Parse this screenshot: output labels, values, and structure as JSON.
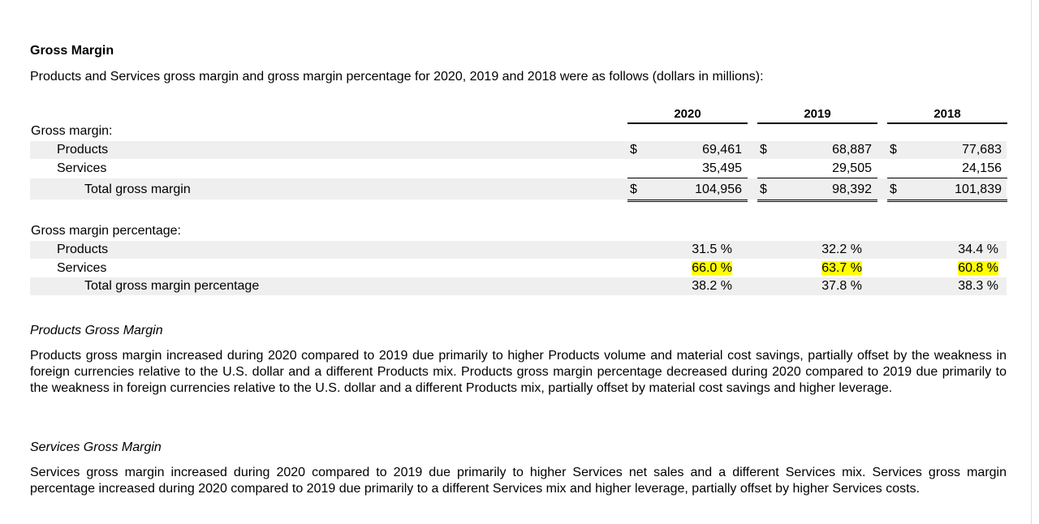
{
  "header": {
    "title": "Gross Margin",
    "intro": "Products and Services gross margin and gross margin percentage for 2020, 2019 and 2018 were as follows (dollars in millions):"
  },
  "table": {
    "years": [
      "2020",
      "2019",
      "2018"
    ],
    "sections": [
      {
        "heading": "Gross margin:",
        "rows": [
          {
            "label": "Products",
            "shaded": true,
            "cells": [
              {
                "currency": "$",
                "value": "69,461"
              },
              {
                "currency": "$",
                "value": "68,887"
              },
              {
                "currency": "$",
                "value": "77,683"
              }
            ]
          },
          {
            "label": "Services",
            "shaded": false,
            "cells": [
              {
                "value": "35,495"
              },
              {
                "value": "29,505"
              },
              {
                "value": "24,156"
              }
            ]
          },
          {
            "label": "Total gross margin",
            "shaded": true,
            "total": true,
            "cells": [
              {
                "currency": "$",
                "value": "104,956"
              },
              {
                "currency": "$",
                "value": "98,392"
              },
              {
                "currency": "$",
                "value": "101,839"
              }
            ]
          }
        ]
      },
      {
        "heading": "Gross margin percentage:",
        "rows": [
          {
            "label": "Products",
            "shaded": true,
            "cells": [
              {
                "value": "31.5 %"
              },
              {
                "value": "32.2 %"
              },
              {
                "value": "34.4 %"
              }
            ]
          },
          {
            "label": "Services",
            "shaded": false,
            "cells": [
              {
                "value": "66.0 %",
                "highlight": true
              },
              {
                "value": "63.7 %",
                "highlight": true
              },
              {
                "value": "60.8 %",
                "highlight": true
              }
            ]
          },
          {
            "label": "Total gross margin percentage",
            "shaded": true,
            "total": true,
            "cells": [
              {
                "value": "38.2 %"
              },
              {
                "value": "37.8 %"
              },
              {
                "value": "38.3 %"
              }
            ]
          }
        ]
      }
    ]
  },
  "sections": [
    {
      "heading": "Products Gross Margin",
      "text": "Products gross margin increased during 2020 compared to 2019 due primarily to higher Products volume and material cost savings, partially offset by the weakness in foreign currencies relative to the U.S. dollar and a different Products mix. Products gross margin percentage decreased during 2020 compared to 2019 due primarily to the weakness in foreign currencies relative to the U.S. dollar and a different Products mix, partially offset by material cost savings and higher leverage."
    },
    {
      "heading": "Services Gross Margin",
      "text": "Services gross margin increased during 2020 compared to 2019 due primarily to higher Services net sales and a different Services mix. Services gross margin percentage increased during 2020 compared to 2019 due primarily to a different Services mix and higher leverage, partially offset by higher Services costs."
    }
  ]
}
